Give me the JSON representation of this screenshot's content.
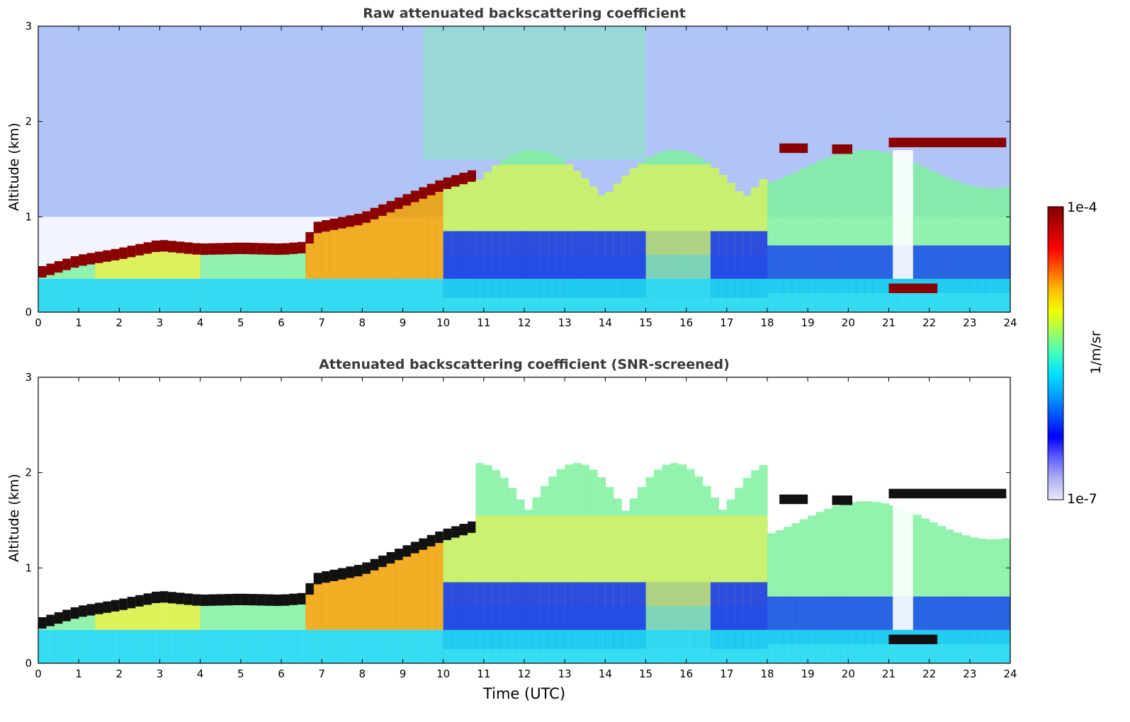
{
  "chart_data": [
    {
      "type": "heatmap",
      "title": "Raw attenuated backscattering coefficient",
      "xlabel": "",
      "ylabel": "Altitude (km)",
      "xlim": [
        0,
        24
      ],
      "ylim": [
        0,
        3
      ],
      "xticks": [
        "0",
        "1",
        "2",
        "3",
        "4",
        "5",
        "6",
        "7",
        "8",
        "9",
        "10",
        "11",
        "12",
        "13",
        "14",
        "15",
        "16",
        "17",
        "18",
        "19",
        "20",
        "21",
        "22",
        "23",
        "24"
      ],
      "yticks": [
        "0",
        "1",
        "2",
        "3"
      ],
      "layer_top_km": [
        [
          0,
          0.45
        ],
        [
          1,
          0.58
        ],
        [
          2,
          0.65
        ],
        [
          3,
          0.74
        ],
        [
          4,
          0.7
        ],
        [
          5,
          0.71
        ],
        [
          6,
          0.7
        ],
        [
          6.6,
          0.72
        ],
        [
          6.8,
          0.92
        ],
        [
          8,
          1.02
        ],
        [
          9,
          1.2
        ],
        [
          10,
          1.38
        ],
        [
          10.8,
          1.48
        ]
      ],
      "upper_layers_km": [
        [
          18.3,
          19.0,
          1.72
        ],
        [
          19.6,
          20.1,
          1.71
        ],
        [
          21.0,
          23.9,
          1.78
        ]
      ]
    },
    {
      "type": "heatmap",
      "title": "Attenuated backscattering coefficient (SNR-screened)",
      "xlabel": "Time (UTC)",
      "ylabel": "Altitude (km)",
      "xlim": [
        0,
        24
      ],
      "ylim": [
        0,
        3
      ],
      "xticks": [
        "0",
        "1",
        "2",
        "3",
        "4",
        "5",
        "6",
        "7",
        "8",
        "9",
        "10",
        "11",
        "12",
        "13",
        "14",
        "15",
        "16",
        "17",
        "18",
        "19",
        "20",
        "21",
        "22",
        "23",
        "24"
      ],
      "yticks": [
        "0",
        "1",
        "2",
        "3"
      ]
    }
  ],
  "colorbar": {
    "max_label": "1e-4",
    "min_label": "1e-7",
    "unit": "1/m/sr",
    "colors": [
      "#e8e8f8",
      "#b0b0f0",
      "#6060ff",
      "#0000ff",
      "#0050ff",
      "#00a0ff",
      "#00e0ff",
      "#40ffc0",
      "#a0ff60",
      "#f0ff00",
      "#ffc000",
      "#ff6000",
      "#ff0000",
      "#c00000",
      "#800000"
    ]
  }
}
